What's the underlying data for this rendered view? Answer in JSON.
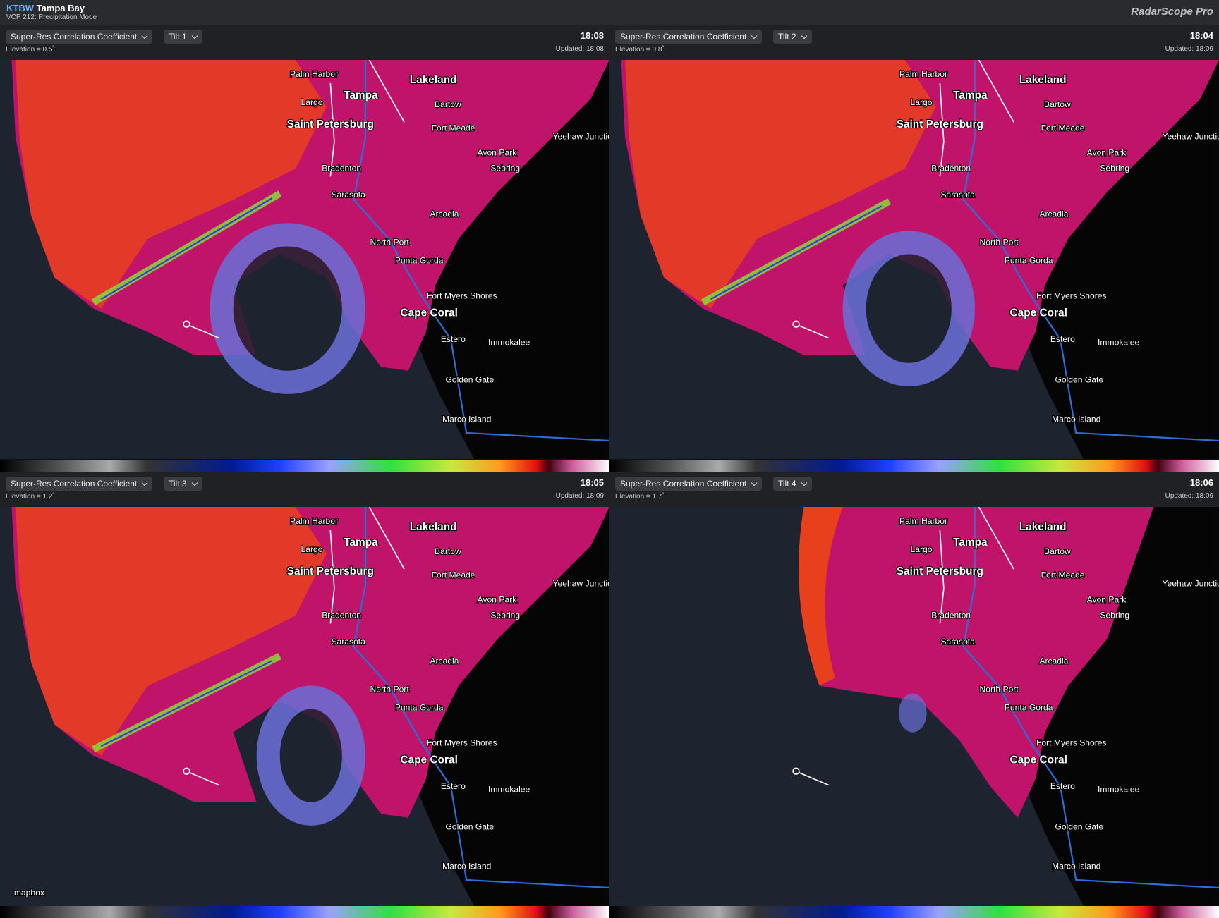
{
  "header": {
    "station": "KTBW",
    "name": "Tampa Bay",
    "mode": "VCP 212: Precipitation Mode",
    "app": "RadarScope Pro"
  },
  "panels": [
    {
      "product": "Super-Res Correlation Coefficient",
      "tilt": "Tilt 1",
      "time": "18:08",
      "elevation": "Elevation = 0.5˚",
      "updated": "Updated: 18:08"
    },
    {
      "product": "Super-Res Correlation Coefficient",
      "tilt": "Tilt 2",
      "time": "18:04",
      "elevation": "Elevation = 0.8˚",
      "updated": "Updated: 18:09"
    },
    {
      "product": "Super-Res Correlation Coefficient",
      "tilt": "Tilt 3",
      "time": "18:05",
      "elevation": "Elevation = 1.2˚",
      "updated": "Updated: 18:09"
    },
    {
      "product": "Super-Res Correlation Coefficient",
      "tilt": "Tilt 4",
      "time": "18:06",
      "elevation": "Elevation = 1.7˚",
      "updated": "Updated: 18:09"
    }
  ],
  "map_labels": [
    "Palm Harbor",
    "Tampa",
    "Largo",
    "Saint Petersburg",
    "Lakeland",
    "Bartow",
    "Fort Meade",
    "Yeehaw Junction",
    "Avon Park",
    "Sebring",
    "Bradenton",
    "Sarasota",
    "Arcadia",
    "North Port",
    "Punta Gorda",
    "Fort Myers Shores",
    "Cape Coral",
    "Estero",
    "Immokalee",
    "Golden Gate",
    "Marco Island"
  ],
  "attribution": "mapbox"
}
